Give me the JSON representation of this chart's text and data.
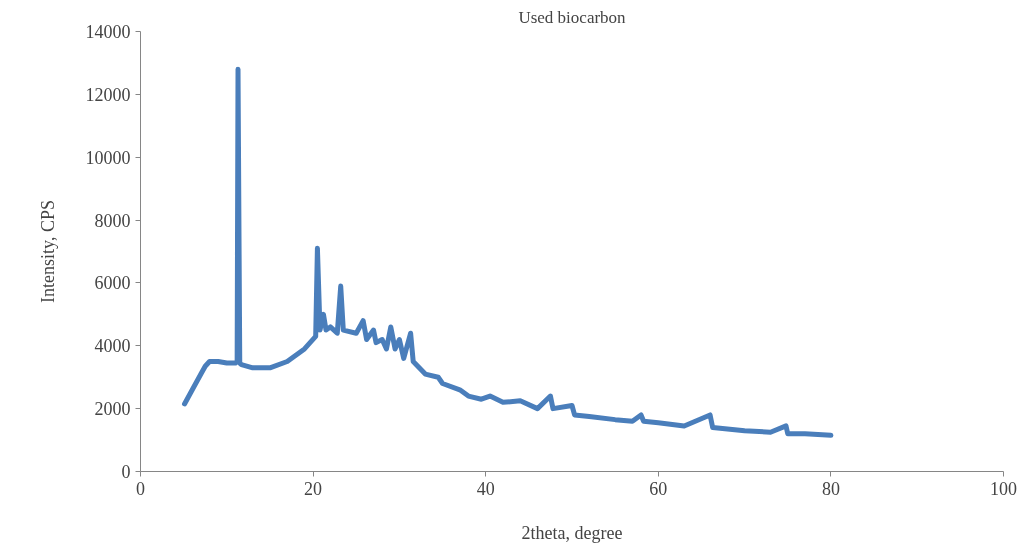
{
  "chart_data": {
    "type": "line",
    "title": "Used biocarbon",
    "xlabel": "2theta, degree",
    "ylabel": "Intensity, CPS",
    "x": [
      5.1,
      6,
      7,
      7.5,
      8,
      9,
      10,
      11,
      11.2,
      11.3,
      11.5,
      11.7,
      13,
      15,
      17,
      19,
      20.3,
      20.5,
      20.8,
      21.2,
      21.5,
      22,
      22.8,
      23.2,
      23.5,
      25,
      25.8,
      26.2,
      27,
      27.3,
      28,
      28.5,
      29,
      29.5,
      30,
      30.5,
      31.3,
      31.6,
      33,
      34.5,
      35,
      37,
      38,
      39.5,
      40.5,
      42,
      44,
      46,
      47.5,
      47.8,
      50,
      50.3,
      52,
      55,
      57,
      58,
      58.3,
      60,
      63,
      66,
      66.3,
      70,
      73,
      74.8,
      75,
      77,
      80
    ],
    "series": [
      {
        "color": "#4a7ebb",
        "values": [
          2150,
          2600,
          3100,
          3350,
          3500,
          3500,
          3450,
          3450,
          3500,
          12800,
          3450,
          3400,
          3300,
          3300,
          3500,
          3900,
          4300,
          7100,
          4500,
          5000,
          4500,
          4600,
          4400,
          5900,
          4500,
          4400,
          4800,
          4200,
          4500,
          4100,
          4200,
          3900,
          4600,
          3900,
          4200,
          3600,
          4400,
          3500,
          3100,
          3000,
          2800,
          2600,
          2400,
          2300,
          2400,
          2200,
          2250,
          2000,
          2400,
          2000,
          2100,
          1800,
          1750,
          1650,
          1600,
          1800,
          1600,
          1550,
          1450,
          1800,
          1400,
          1300,
          1250,
          1450,
          1200,
          1200,
          1150
        ]
      }
    ],
    "xlim": [
      0,
      100
    ],
    "xticks": [
      0,
      20,
      40,
      60,
      80,
      100
    ],
    "ylim": [
      0,
      14000
    ],
    "yticks": [
      0,
      2000,
      4000,
      6000,
      8000,
      10000,
      12000,
      14000
    ],
    "grid": false,
    "marker": "none",
    "line_style": "solid"
  }
}
